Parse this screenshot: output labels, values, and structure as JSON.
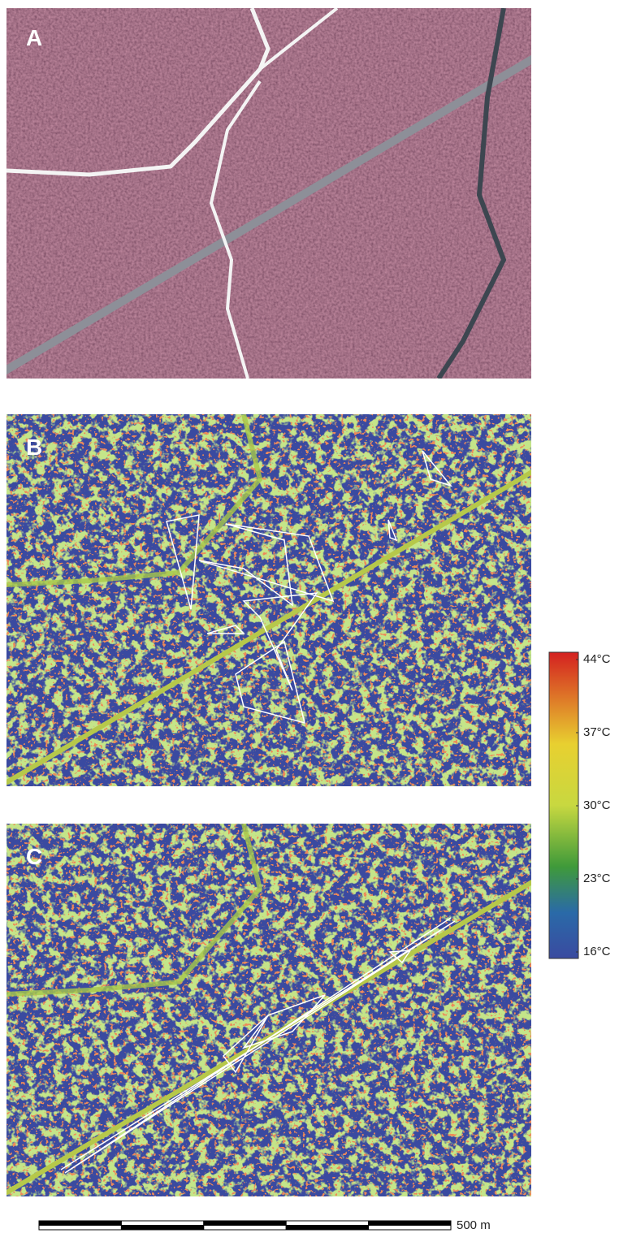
{
  "panels": [
    {
      "label": "A"
    },
    {
      "label": "B"
    },
    {
      "label": "C"
    }
  ],
  "colorbar": {
    "ticks": [
      {
        "value": 44,
        "label": "44°C"
      },
      {
        "value": 37,
        "label": "37°C"
      },
      {
        "value": 30,
        "label": "30°C"
      },
      {
        "value": 23,
        "label": "23°C"
      },
      {
        "value": 16,
        "label": "16°C"
      }
    ]
  },
  "scale_bar": {
    "label": "500 m"
  }
}
